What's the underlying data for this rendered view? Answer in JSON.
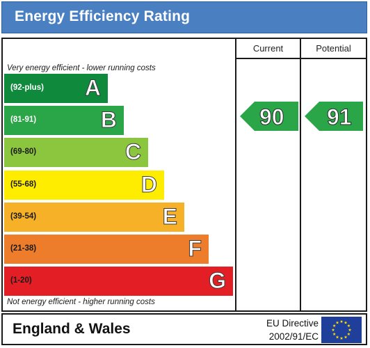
{
  "title": "Energy Efficiency Rating",
  "columns": {
    "current": "Current",
    "potential": "Potential"
  },
  "captions": {
    "top": "Very energy efficient - lower running costs",
    "bottom": "Not energy efficient - higher running costs"
  },
  "bands": [
    {
      "range": "(92-plus)",
      "letter": "A",
      "color": "#0f8a3c"
    },
    {
      "range": "(81-91)",
      "letter": "B",
      "color": "#2aa649"
    },
    {
      "range": "(69-80)",
      "letter": "C",
      "color": "#8cc63f"
    },
    {
      "range": "(55-68)",
      "letter": "D",
      "color": "#ffed00"
    },
    {
      "range": "(39-54)",
      "letter": "E",
      "color": "#f6b128"
    },
    {
      "range": "(21-38)",
      "letter": "F",
      "color": "#ee7d2b"
    },
    {
      "range": "(1-20)",
      "letter": "G",
      "color": "#e31e25"
    }
  ],
  "ratings": {
    "current": {
      "value": "90",
      "band": "B",
      "color": "#2aa649"
    },
    "potential": {
      "value": "91",
      "band": "B",
      "color": "#2aa649"
    }
  },
  "footer": {
    "country": "England & Wales",
    "directive_line1": "EU Directive",
    "directive_line2": "2002/91/EC"
  },
  "eu_flag": {
    "icon": "eu-flag-icon",
    "field": "#1f3f9a",
    "stars": "#ffdd00"
  }
}
